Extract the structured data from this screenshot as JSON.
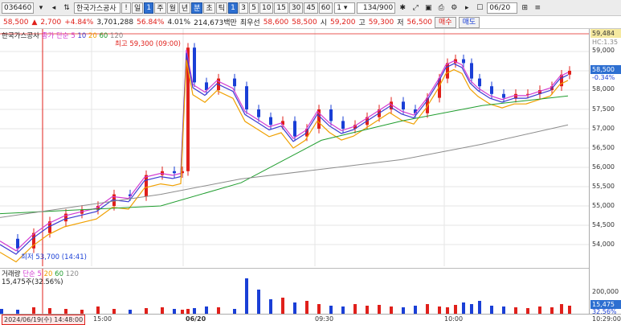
{
  "toolbar": {
    "code": "036460",
    "name": "한국가스공사",
    "period_buttons": [
      "일",
      "주",
      "월",
      "년",
      "분",
      "초",
      "틱"
    ],
    "selected_period": "일",
    "period_value": "1",
    "minute_buttons": [
      "1",
      "3",
      "5",
      "10",
      "15",
      "30",
      "45",
      "60"
    ],
    "interval_value": "1",
    "count": "134/900",
    "date": "06/20",
    "icons": [
      "search-icon",
      "arrow-icon",
      "chart-icon",
      "gear-icon",
      "lock-icon",
      "save-icon",
      "print-icon",
      "settings-icon",
      "grid-icon",
      "calendar-icon"
    ]
  },
  "quote": {
    "price": "58,500",
    "change": "2,700",
    "change_rate": "+4.84%",
    "volume": "3,701,288",
    "volume_rate": "56.84%",
    "turnover_rate": "4.01%",
    "amount": "214,673백만",
    "best_ask_label": "최우선",
    "best_ask": "58,600",
    "best_bid": "58,500",
    "open_label": "시",
    "open": "59,200",
    "high_label": "고",
    "high": "59,300",
    "low_label": "저",
    "low": "56,500",
    "buy_label": "매수",
    "sell_label": "매도"
  },
  "legend": {
    "main": "한국가스공사",
    "ma_label": "종가 단순",
    "ma_periods": [
      "5",
      "10",
      "20",
      "60",
      "120"
    ],
    "volume_title": "거래량",
    "volume_ma_label": "단순",
    "volume_ma_periods": [
      "5",
      "20",
      "60",
      "120"
    ],
    "volume_value": "15,475주(32.56%)"
  },
  "annotations": {
    "high": "최고 59,300 (09:00)",
    "low": "최저 53,700 (14:41)",
    "crosshair_time": "2024/06/19(수) 14:48:00"
  },
  "price_axis": {
    "ticks": [
      "59,000",
      "58,500",
      "58,000",
      "57,500",
      "57,000",
      "56,500",
      "56,000",
      "55,500",
      "55,000",
      "54,500",
      "54,000"
    ],
    "top_label": "59,484",
    "current_price": "58,500",
    "current_rate": "-0.34%",
    "volume_tick": "200,000",
    "volume_tick2": "100,000",
    "volume_current": "15,475",
    "volume_current_rate": "32.56%",
    "hc_label": "HC:1.35"
  },
  "time_axis": {
    "labels": [
      "15:00",
      "06/20",
      "09:30",
      "10:00"
    ],
    "right_label": "10:29:00"
  },
  "colors": {
    "up": "#e0201b",
    "down": "#1a3fd6",
    "ma5": "#d23bd2",
    "ma10": "#3b3bd2",
    "ma20": "#f0a000",
    "ma60": "#1f9d2e",
    "ma120": "#8c8c8c"
  }
}
